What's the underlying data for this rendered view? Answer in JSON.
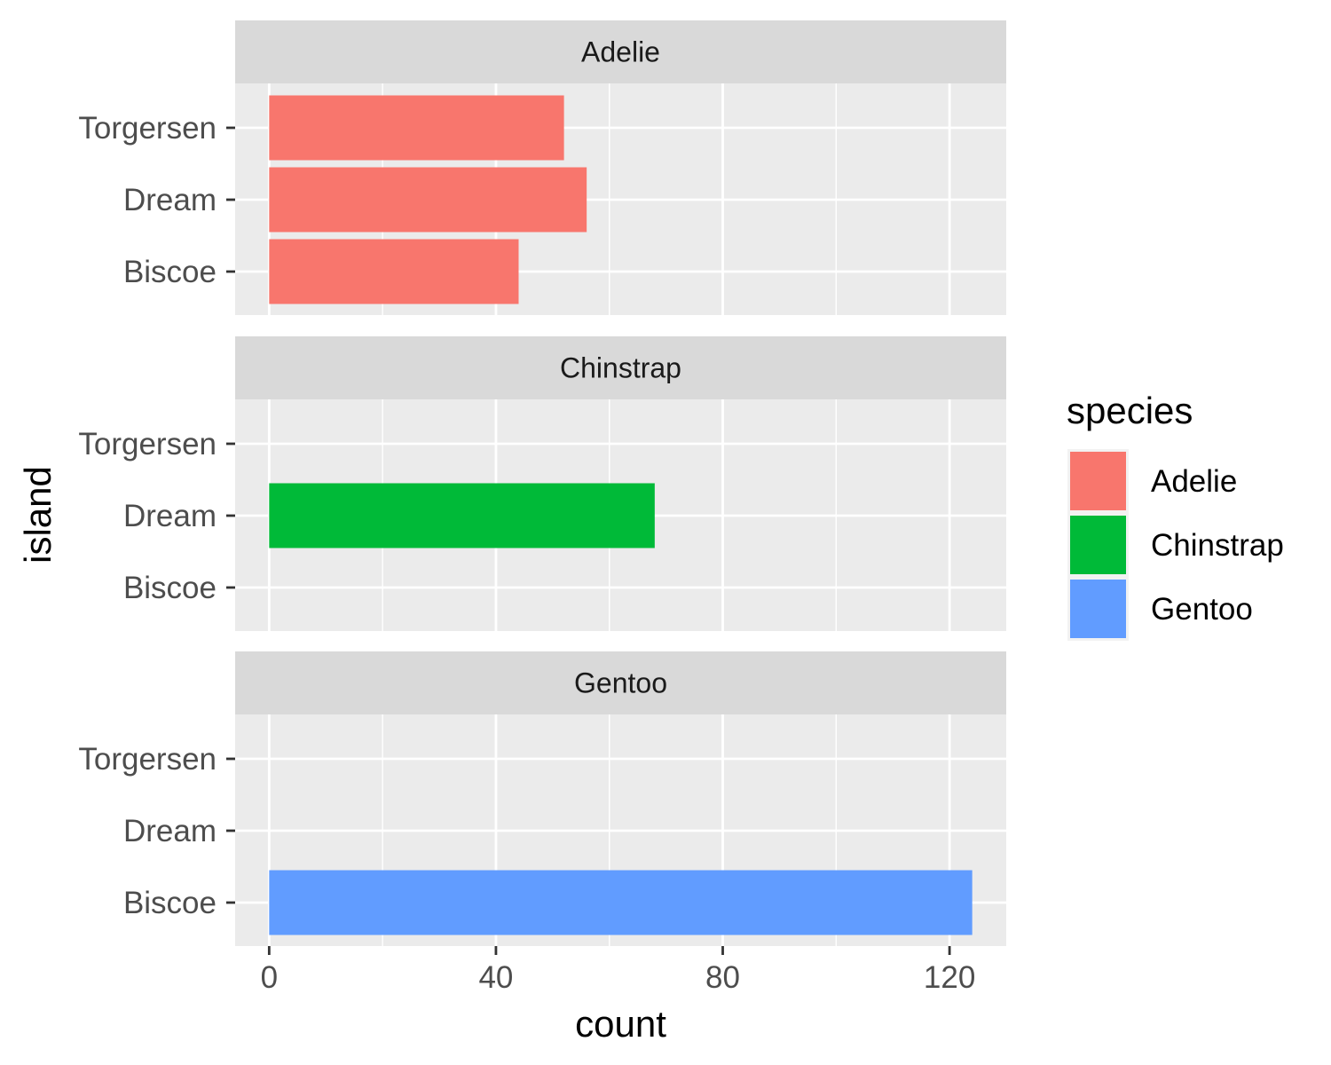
{
  "chart_data": {
    "type": "bar",
    "orientation": "horizontal",
    "facet_by": "species",
    "xlabel": "count",
    "ylabel": "island",
    "xlim": [
      -6,
      130
    ],
    "x_ticks": [
      0,
      40,
      80,
      120
    ],
    "categories": [
      "Torgersen",
      "Dream",
      "Biscoe"
    ],
    "grid": true,
    "legend": {
      "title": "species",
      "position": "right",
      "items": [
        {
          "label": "Adelie",
          "color": "#F8766D"
        },
        {
          "label": "Chinstrap",
          "color": "#00BA38"
        },
        {
          "label": "Gentoo",
          "color": "#619CFF"
        }
      ]
    },
    "panels": [
      {
        "title": "Adelie",
        "color": "#F8766D",
        "values": {
          "Torgersen": 52,
          "Dream": 56,
          "Biscoe": 44
        }
      },
      {
        "title": "Chinstrap",
        "color": "#00BA38",
        "values": {
          "Torgersen": 0,
          "Dream": 68,
          "Biscoe": 0
        }
      },
      {
        "title": "Gentoo",
        "color": "#619CFF",
        "values": {
          "Torgersen": 0,
          "Dream": 0,
          "Biscoe": 124
        }
      }
    ]
  }
}
